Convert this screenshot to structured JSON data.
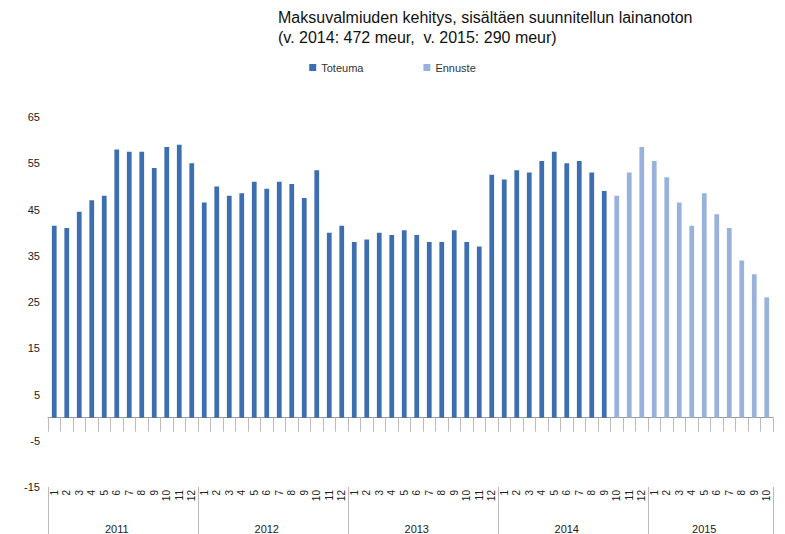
{
  "chart_data": {
    "type": "bar",
    "title": "Maksuvalmiuden kehitys, sisältäen suunnitellun lainanoton",
    "subtitle": "(v. 2014: 472 meur,  v. 2015: 290 meur)",
    "categories": [
      "1",
      "2",
      "3",
      "4",
      "5",
      "6",
      "7",
      "8",
      "9",
      "10",
      "11",
      "12",
      "1",
      "2",
      "3",
      "4",
      "5",
      "6",
      "7",
      "8",
      "9",
      "10",
      "11",
      "12",
      "1",
      "2",
      "3",
      "4",
      "5",
      "6",
      "7",
      "8",
      "9",
      "10",
      "11",
      "12",
      "1",
      "2",
      "3",
      "4",
      "5",
      "6",
      "7",
      "8",
      "9",
      "10",
      "11",
      "12",
      "1",
      "2",
      "3",
      "4",
      "5",
      "6",
      "7",
      "8",
      "9",
      "10"
    ],
    "groups": [
      {
        "label": "2011",
        "size": 12
      },
      {
        "label": "2012",
        "size": 12
      },
      {
        "label": "2013",
        "size": 12
      },
      {
        "label": "2014",
        "size": 12
      },
      {
        "label": "2015",
        "size": 10
      }
    ],
    "series": [
      {
        "name": "Toteuma",
        "color": "#3d6eb0",
        "values": [
          41.5,
          41,
          44.5,
          47,
          48,
          58,
          57.5,
          57.5,
          54,
          58.5,
          59,
          55,
          46.5,
          50,
          48,
          48.5,
          51,
          49.5,
          51,
          50.5,
          47.5,
          53.5,
          40,
          41.5,
          38,
          38.5,
          40,
          39.5,
          40.5,
          39.5,
          38,
          38,
          40.5,
          38,
          37,
          52.5,
          51.5,
          53.5,
          53,
          55.5,
          57.5,
          55,
          55.5,
          53,
          49,
          null,
          null,
          null,
          null,
          null,
          null,
          null,
          null,
          null,
          null,
          null,
          null,
          null
        ]
      },
      {
        "name": "Ennuste",
        "color": "#98b2dc",
        "values": [
          null,
          null,
          null,
          null,
          null,
          null,
          null,
          null,
          null,
          null,
          null,
          null,
          null,
          null,
          null,
          null,
          null,
          null,
          null,
          null,
          null,
          null,
          null,
          null,
          null,
          null,
          null,
          null,
          null,
          null,
          null,
          null,
          null,
          null,
          null,
          null,
          null,
          null,
          null,
          null,
          null,
          null,
          null,
          null,
          null,
          48,
          53,
          58.5,
          55.5,
          52,
          46.5,
          41.5,
          48.5,
          44,
          41,
          34,
          31,
          26
        ]
      }
    ],
    "ylim": [
      -15,
      65
    ],
    "yticks": [
      -15,
      -5,
      5,
      15,
      25,
      35,
      45,
      55,
      65
    ],
    "grid": false,
    "legend": "top"
  }
}
